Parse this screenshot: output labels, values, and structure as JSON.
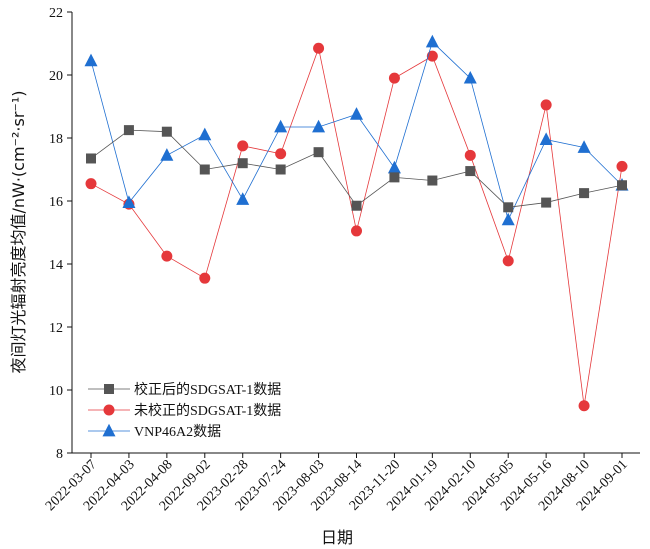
{
  "chart_data": {
    "type": "line",
    "xlabel": "日期",
    "ylabel": "夜间灯光辐射亮度均值/nW·(cm⁻²·sr⁻¹)",
    "ylim": [
      8,
      22
    ],
    "yticks": [
      8,
      10,
      12,
      14,
      16,
      18,
      20,
      22
    ],
    "categories": [
      "2022-03-07",
      "2022-04-03",
      "2022-04-08",
      "2022-09-02",
      "2023-02-28",
      "2023-07-24",
      "2023-08-03",
      "2023-08-14",
      "2023-11-20",
      "2024-01-19",
      "2024-02-10",
      "2024-05-05",
      "2024-05-16",
      "2024-08-10",
      "2024-09-01"
    ],
    "grid": false,
    "legend_position": "bottom-left",
    "series": [
      {
        "name": "校正后的SDGSAT-1数据",
        "marker": "square",
        "color": "#555555",
        "values": [
          17.35,
          18.25,
          18.2,
          17.0,
          17.2,
          17.0,
          17.55,
          15.85,
          16.75,
          16.65,
          16.95,
          15.8,
          15.95,
          16.25,
          16.5
        ]
      },
      {
        "name": "未校正的SDGSAT-1数据",
        "marker": "circle",
        "color": "#e5383b",
        "values": [
          16.55,
          15.9,
          14.25,
          13.55,
          17.75,
          17.5,
          20.85,
          15.05,
          19.9,
          20.6,
          17.45,
          14.1,
          19.05,
          9.5,
          17.1
        ]
      },
      {
        "name": "VNP46A2数据",
        "marker": "triangle",
        "color": "#1f6fd1",
        "values": [
          20.45,
          15.95,
          17.45,
          18.1,
          16.05,
          18.35,
          18.35,
          18.75,
          17.05,
          21.05,
          19.9,
          15.4,
          17.95,
          17.7,
          16.5
        ]
      }
    ]
  }
}
